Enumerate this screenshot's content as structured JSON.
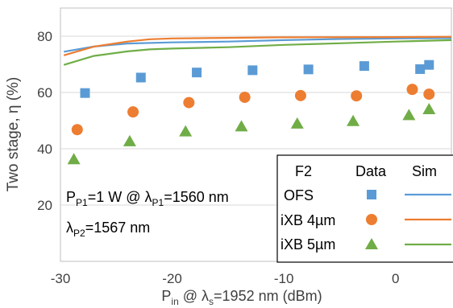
{
  "chart_data": {
    "type": "scatter",
    "xlabel_parts": {
      "p": "P",
      "p_sub": "in",
      "at": " @ λ",
      "lam_sub": "s",
      "rest": "=1952 nm (dBm)"
    },
    "ylabel": "Two stage, η (%)",
    "xlim": [
      -30,
      5
    ],
    "ylim": [
      0,
      90
    ],
    "x_ticks": [
      "-30",
      "-20",
      "-10",
      "0"
    ],
    "x_tick_values": [
      -30,
      -20,
      -10,
      0
    ],
    "y_ticks": [
      "20",
      "40",
      "60",
      "80"
    ],
    "y_tick_values": [
      20,
      40,
      60,
      80
    ],
    "grid": "horizontal",
    "annotations": {
      "line1": {
        "p": "P",
        "p_sub": "P1",
        "mid": "=1 W @ λ",
        "l_sub": "P1",
        "end": "=1560 nm"
      },
      "line2": {
        "l": "λ",
        "l_sub": "P2",
        "end": "=1567 nm"
      }
    },
    "legend": {
      "placement": "bottom-right",
      "headers": [
        "F2",
        "Data",
        "Sim"
      ],
      "entries": [
        "OFS",
        "iXB 4µm",
        "iXB 5µm"
      ]
    },
    "series": [
      {
        "name": "OFS",
        "marker": "square",
        "color": "#5B9BD5",
        "points": [
          [
            -27.8,
            59.8
          ],
          [
            -22.8,
            65.3
          ],
          [
            -17.8,
            67.1
          ],
          [
            -12.8,
            67.9
          ],
          [
            -7.8,
            68.2
          ],
          [
            -2.8,
            69.4
          ],
          [
            2.2,
            68.3
          ],
          [
            3.0,
            69.8
          ]
        ],
        "sim": [
          [
            -29.7,
            74.5
          ],
          [
            -27,
            76.3
          ],
          [
            -24,
            77.4
          ],
          [
            -20,
            77.8
          ],
          [
            -15,
            78.1
          ],
          [
            -10,
            78.6
          ],
          [
            -5,
            79.0
          ],
          [
            0,
            79.2
          ],
          [
            5,
            79.3
          ]
        ]
      },
      {
        "name": "iXB 4µm",
        "marker": "circle",
        "color": "#ED7D31",
        "points": [
          [
            -28.5,
            46.8
          ],
          [
            -23.5,
            53.1
          ],
          [
            -18.5,
            56.4
          ],
          [
            -13.5,
            58.3
          ],
          [
            -8.5,
            58.9
          ],
          [
            -3.5,
            58.8
          ],
          [
            1.5,
            61.1
          ],
          [
            3.0,
            59.4
          ]
        ],
        "sim": [
          [
            -29.7,
            73.2
          ],
          [
            -27,
            76.3
          ],
          [
            -24,
            78.1
          ],
          [
            -22,
            78.9
          ],
          [
            -20,
            79.2
          ],
          [
            -10,
            79.6
          ],
          [
            0,
            79.7
          ],
          [
            5,
            79.8
          ]
        ]
      },
      {
        "name": "iXB 5µm",
        "marker": "triangle",
        "color": "#70AD47",
        "points": [
          [
            -28.8,
            36.2
          ],
          [
            -23.8,
            42.6
          ],
          [
            -18.8,
            46.1
          ],
          [
            -13.8,
            47.9
          ],
          [
            -8.8,
            48.9
          ],
          [
            -3.8,
            49.8
          ],
          [
            1.2,
            51.9
          ],
          [
            3.0,
            54.0
          ]
        ],
        "sim": [
          [
            -29.7,
            69.8
          ],
          [
            -27,
            73.0
          ],
          [
            -24,
            74.6
          ],
          [
            -22,
            75.3
          ],
          [
            -20,
            75.6
          ],
          [
            -15,
            76.1
          ],
          [
            -10,
            76.9
          ],
          [
            -5,
            77.5
          ],
          [
            0,
            78.1
          ],
          [
            5,
            78.6
          ]
        ]
      }
    ]
  }
}
